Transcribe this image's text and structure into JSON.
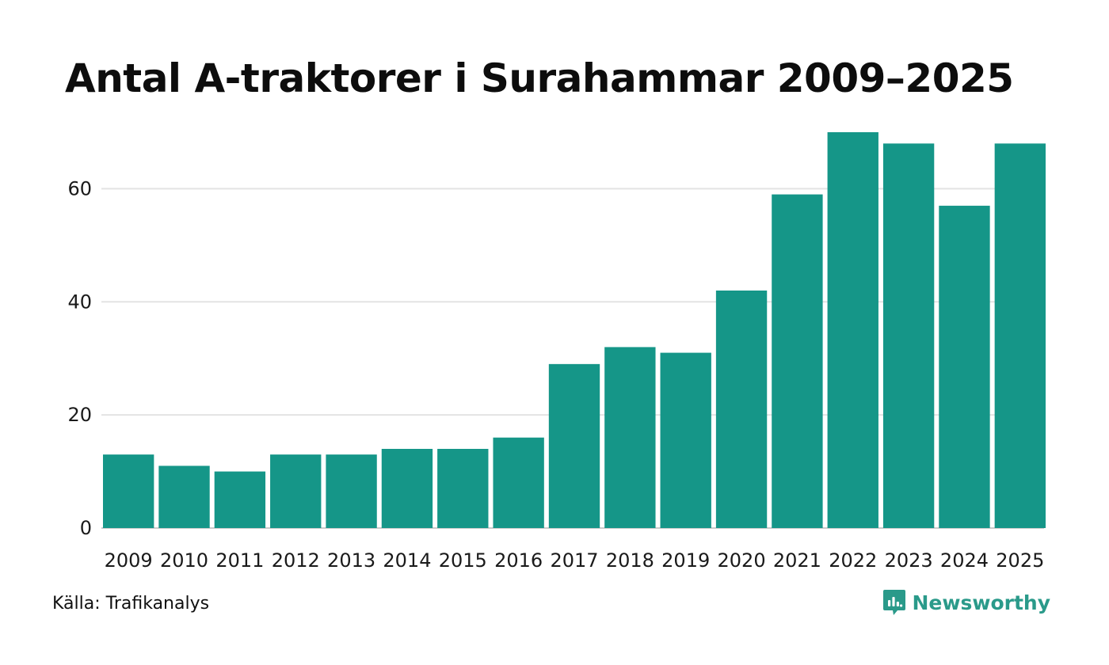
{
  "title": "Antal A-traktorer i Surahammar 2009–2025",
  "source": "Källa: Trafikanalys",
  "brand": {
    "name": "Newsworthy",
    "icon": "newsworthy-logo-icon",
    "color": "#2a9a8a"
  },
  "colors": {
    "bar": "#159688",
    "grid": "#e3e3e3",
    "axis": "#cccccc"
  },
  "chart_data": {
    "type": "bar",
    "title": "Antal A-traktorer i Surahammar 2009–2025",
    "xlabel": "",
    "ylabel": "",
    "categories": [
      "2009",
      "2010",
      "2011",
      "2012",
      "2013",
      "2014",
      "2015",
      "2016",
      "2017",
      "2018",
      "2019",
      "2020",
      "2021",
      "2022",
      "2023",
      "2024",
      "2025"
    ],
    "values": [
      13,
      11,
      10,
      13,
      13,
      14,
      14,
      16,
      29,
      32,
      31,
      42,
      59,
      70,
      68,
      57,
      68
    ],
    "yticks": [
      0,
      20,
      40,
      60
    ],
    "ylim": [
      0,
      70
    ],
    "grid": true
  }
}
